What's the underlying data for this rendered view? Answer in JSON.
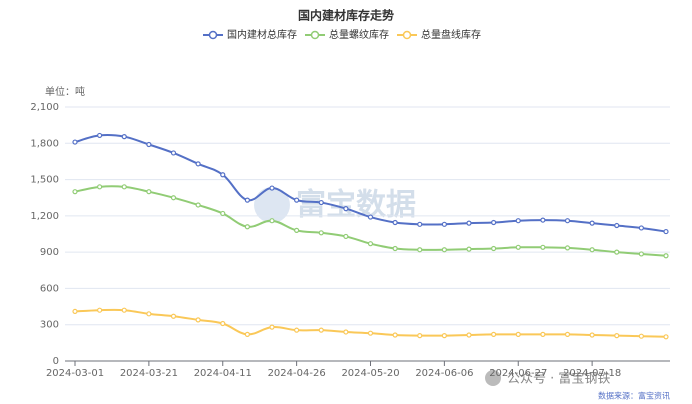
{
  "chart_data": {
    "type": "line",
    "title": "国内建材库存走势",
    "y_label": "单位：吨",
    "categories": [
      "2024-03-01",
      null,
      null,
      "2024-03-21",
      null,
      null,
      "2024-04-11",
      null,
      null,
      "2024-04-26",
      null,
      null,
      "2024-05-20",
      null,
      null,
      "2024-06-06",
      null,
      null,
      "2024-06-27",
      null,
      null,
      "2024-07-18",
      null,
      null,
      null
    ],
    "series": [
      {
        "name": "国内建材总库存",
        "color": "#5470c6",
        "values": [
          1810,
          1865,
          1855,
          1790,
          1720,
          1630,
          1540,
          1330,
          1430,
          1330,
          1310,
          1260,
          1190,
          1145,
          1130,
          1130,
          1140,
          1145,
          1160,
          1165,
          1160,
          1140,
          1120,
          1100,
          1070
        ]
      },
      {
        "name": "总量螺纹库存",
        "color": "#91cc75",
        "values": [
          1400,
          1440,
          1440,
          1400,
          1350,
          1290,
          1220,
          1110,
          1160,
          1080,
          1060,
          1030,
          970,
          930,
          920,
          920,
          925,
          930,
          940,
          940,
          935,
          920,
          900,
          885,
          870
        ]
      },
      {
        "name": "总量盘线库存",
        "color": "#fac858",
        "values": [
          410,
          420,
          420,
          390,
          370,
          340,
          310,
          220,
          280,
          255,
          255,
          240,
          230,
          215,
          210,
          210,
          215,
          220,
          220,
          220,
          220,
          215,
          210,
          205,
          200
        ]
      }
    ],
    "ylim": [
      0,
      2100
    ],
    "yticks": [
      0,
      300,
      600,
      900,
      {
        "value": 1200,
        "label": "1,200"
      },
      {
        "value": 1500,
        "label": "1,500"
      },
      {
        "value": 1800,
        "label": "1,800"
      },
      {
        "value": 2100,
        "label": "2,100"
      }
    ],
    "grid": true,
    "legend": "top"
  },
  "watermark": "富宝数据",
  "wechat_account": "公众号 · 富宝钢铁",
  "source": "数据来源：富宝资讯"
}
